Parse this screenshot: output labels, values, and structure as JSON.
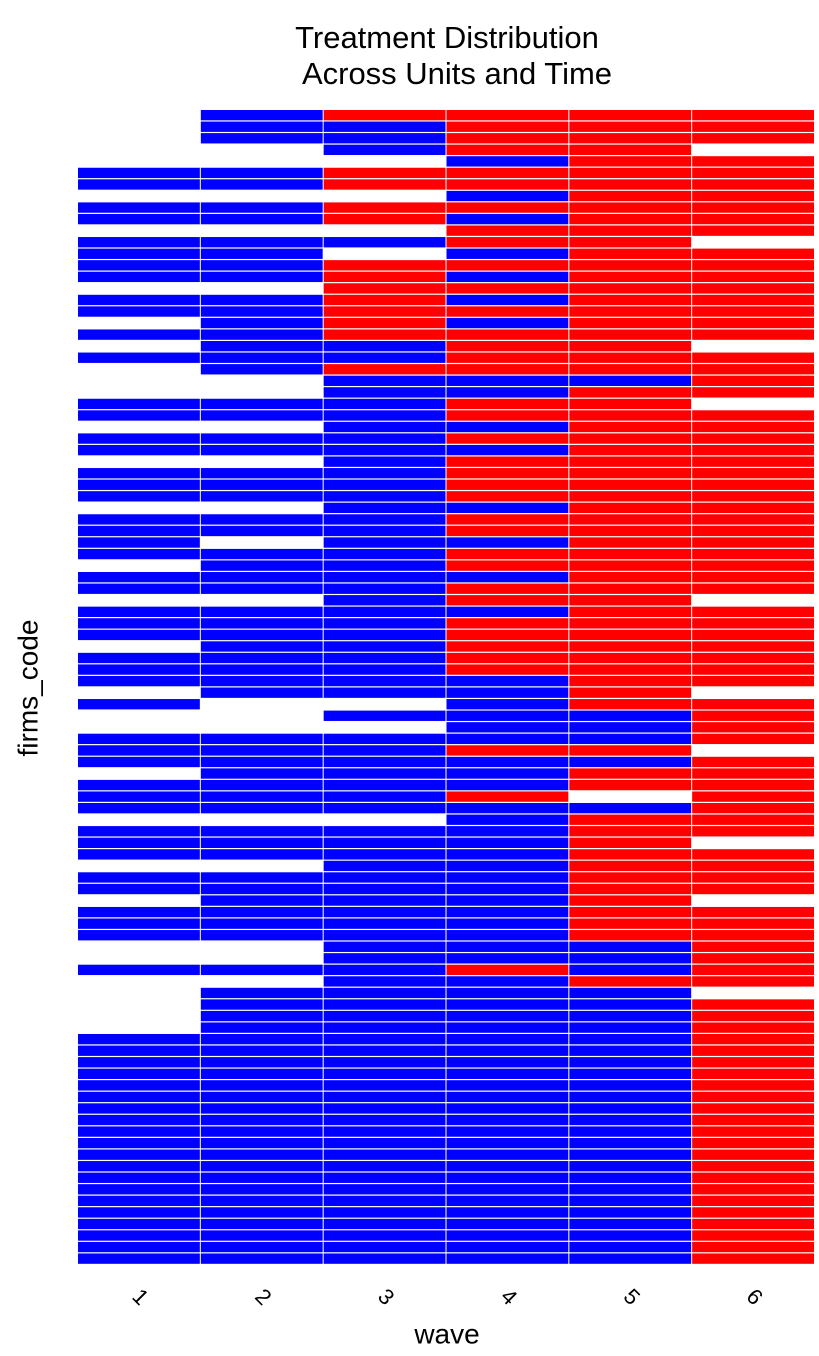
{
  "chart_data": {
    "type": "heatmap",
    "title": [
      "Treatment Distribution",
      "Across Units and Time"
    ],
    "x_label": "wave",
    "y_label": "firms_code",
    "categories": [
      "1",
      "2",
      "3",
      "4",
      "5",
      "6"
    ],
    "colors": [
      "#0000ff",
      "#ff0000"
    ],
    "rows": [
      [
        null,
        0,
        1,
        1,
        1,
        1
      ],
      [
        null,
        0,
        0,
        1,
        1,
        1
      ],
      [
        null,
        0,
        0,
        1,
        1,
        1
      ],
      [
        null,
        null,
        0,
        1,
        1,
        null
      ],
      [
        null,
        null,
        null,
        0,
        1,
        1
      ],
      [
        0,
        0,
        1,
        1,
        1,
        1
      ],
      [
        0,
        0,
        1,
        1,
        1,
        1
      ],
      [
        null,
        null,
        null,
        0,
        1,
        1
      ],
      [
        0,
        0,
        1,
        1,
        1,
        1
      ],
      [
        0,
        0,
        1,
        0,
        1,
        1
      ],
      [
        null,
        null,
        null,
        1,
        1,
        1
      ],
      [
        0,
        0,
        0,
        1,
        1,
        null
      ],
      [
        0,
        0,
        null,
        0,
        1,
        1
      ],
      [
        0,
        0,
        1,
        1,
        1,
        1
      ],
      [
        0,
        0,
        1,
        0,
        1,
        1
      ],
      [
        null,
        null,
        1,
        1,
        1,
        1
      ],
      [
        0,
        0,
        1,
        0,
        1,
        1
      ],
      [
        0,
        0,
        1,
        1,
        1,
        1
      ],
      [
        null,
        0,
        1,
        0,
        1,
        1
      ],
      [
        0,
        0,
        1,
        1,
        1,
        1
      ],
      [
        null,
        0,
        0,
        1,
        1,
        null
      ],
      [
        0,
        0,
        0,
        1,
        1,
        1
      ],
      [
        null,
        0,
        1,
        1,
        1,
        1
      ],
      [
        null,
        null,
        0,
        0,
        0,
        1
      ],
      [
        null,
        null,
        0,
        0,
        1,
        1
      ],
      [
        0,
        0,
        0,
        1,
        1,
        null
      ],
      [
        0,
        0,
        0,
        1,
        1,
        1
      ],
      [
        null,
        null,
        0,
        0,
        1,
        1
      ],
      [
        0,
        0,
        0,
        1,
        1,
        1
      ],
      [
        0,
        0,
        0,
        0,
        1,
        1
      ],
      [
        null,
        null,
        0,
        1,
        1,
        1
      ],
      [
        0,
        0,
        0,
        1,
        1,
        1
      ],
      [
        0,
        0,
        0,
        1,
        1,
        1
      ],
      [
        0,
        0,
        0,
        1,
        1,
        1
      ],
      [
        null,
        null,
        0,
        0,
        1,
        1
      ],
      [
        0,
        0,
        0,
        1,
        1,
        1
      ],
      [
        0,
        0,
        0,
        1,
        1,
        1
      ],
      [
        0,
        null,
        0,
        0,
        1,
        1
      ],
      [
        0,
        0,
        0,
        1,
        1,
        1
      ],
      [
        null,
        0,
        0,
        1,
        1,
        1
      ],
      [
        0,
        0,
        0,
        0,
        1,
        1
      ],
      [
        0,
        0,
        0,
        1,
        1,
        1
      ],
      [
        null,
        null,
        0,
        1,
        1,
        null
      ],
      [
        0,
        0,
        0,
        0,
        1,
        1
      ],
      [
        0,
        0,
        0,
        1,
        1,
        1
      ],
      [
        0,
        0,
        0,
        1,
        1,
        1
      ],
      [
        null,
        0,
        0,
        1,
        1,
        1
      ],
      [
        0,
        0,
        0,
        1,
        1,
        1
      ],
      [
        0,
        0,
        0,
        1,
        1,
        1
      ],
      [
        0,
        0,
        0,
        0,
        1,
        1
      ],
      [
        null,
        0,
        0,
        0,
        1,
        null
      ],
      [
        0,
        null,
        null,
        0,
        1,
        1
      ],
      [
        null,
        null,
        0,
        0,
        0,
        1
      ],
      [
        null,
        null,
        null,
        0,
        0,
        1
      ],
      [
        0,
        0,
        0,
        0,
        0,
        1
      ],
      [
        0,
        0,
        0,
        1,
        1,
        null
      ],
      [
        0,
        0,
        0,
        0,
        0,
        1
      ],
      [
        null,
        0,
        0,
        0,
        1,
        1
      ],
      [
        0,
        0,
        0,
        0,
        1,
        1
      ],
      [
        0,
        0,
        0,
        1,
        null,
        1
      ],
      [
        0,
        0,
        0,
        0,
        0,
        1
      ],
      [
        null,
        null,
        null,
        0,
        1,
        1
      ],
      [
        0,
        0,
        0,
        0,
        1,
        1
      ],
      [
        0,
        0,
        0,
        0,
        1,
        null
      ],
      [
        0,
        0,
        0,
        0,
        1,
        1
      ],
      [
        null,
        null,
        0,
        0,
        1,
        1
      ],
      [
        0,
        0,
        0,
        0,
        1,
        1
      ],
      [
        0,
        0,
        0,
        0,
        1,
        1
      ],
      [
        null,
        0,
        0,
        0,
        1,
        null
      ],
      [
        0,
        0,
        0,
        0,
        1,
        1
      ],
      [
        0,
        0,
        0,
        0,
        1,
        1
      ],
      [
        0,
        0,
        0,
        0,
        1,
        1
      ],
      [
        null,
        null,
        0,
        0,
        0,
        1
      ],
      [
        null,
        null,
        0,
        0,
        0,
        1
      ],
      [
        0,
        0,
        0,
        1,
        0,
        1
      ],
      [
        null,
        null,
        0,
        0,
        1,
        1
      ],
      [
        null,
        0,
        0,
        0,
        0,
        null
      ],
      [
        null,
        0,
        0,
        0,
        0,
        1
      ],
      [
        null,
        0,
        0,
        0,
        0,
        1
      ],
      [
        null,
        0,
        0,
        0,
        0,
        1
      ],
      [
        0,
        0,
        0,
        0,
        0,
        1
      ],
      [
        0,
        0,
        0,
        0,
        0,
        1
      ],
      [
        0,
        0,
        0,
        0,
        0,
        1
      ],
      [
        0,
        0,
        0,
        0,
        0,
        1
      ],
      [
        0,
        0,
        0,
        0,
        0,
        1
      ],
      [
        0,
        0,
        0,
        0,
        0,
        1
      ],
      [
        0,
        0,
        0,
        0,
        0,
        1
      ],
      [
        0,
        0,
        0,
        0,
        0,
        1
      ],
      [
        0,
        0,
        0,
        0,
        0,
        1
      ],
      [
        0,
        0,
        0,
        0,
        0,
        1
      ],
      [
        0,
        0,
        0,
        0,
        0,
        1
      ],
      [
        0,
        0,
        0,
        0,
        0,
        1
      ],
      [
        0,
        0,
        0,
        0,
        0,
        1
      ],
      [
        0,
        0,
        0,
        0,
        0,
        1
      ],
      [
        0,
        0,
        0,
        0,
        0,
        1
      ],
      [
        0,
        0,
        0,
        0,
        0,
        1
      ],
      [
        0,
        0,
        0,
        0,
        0,
        1
      ],
      [
        0,
        0,
        0,
        0,
        0,
        1
      ],
      [
        0,
        0,
        0,
        0,
        0,
        1
      ],
      [
        0,
        0,
        0,
        0,
        0,
        1
      ]
    ]
  }
}
